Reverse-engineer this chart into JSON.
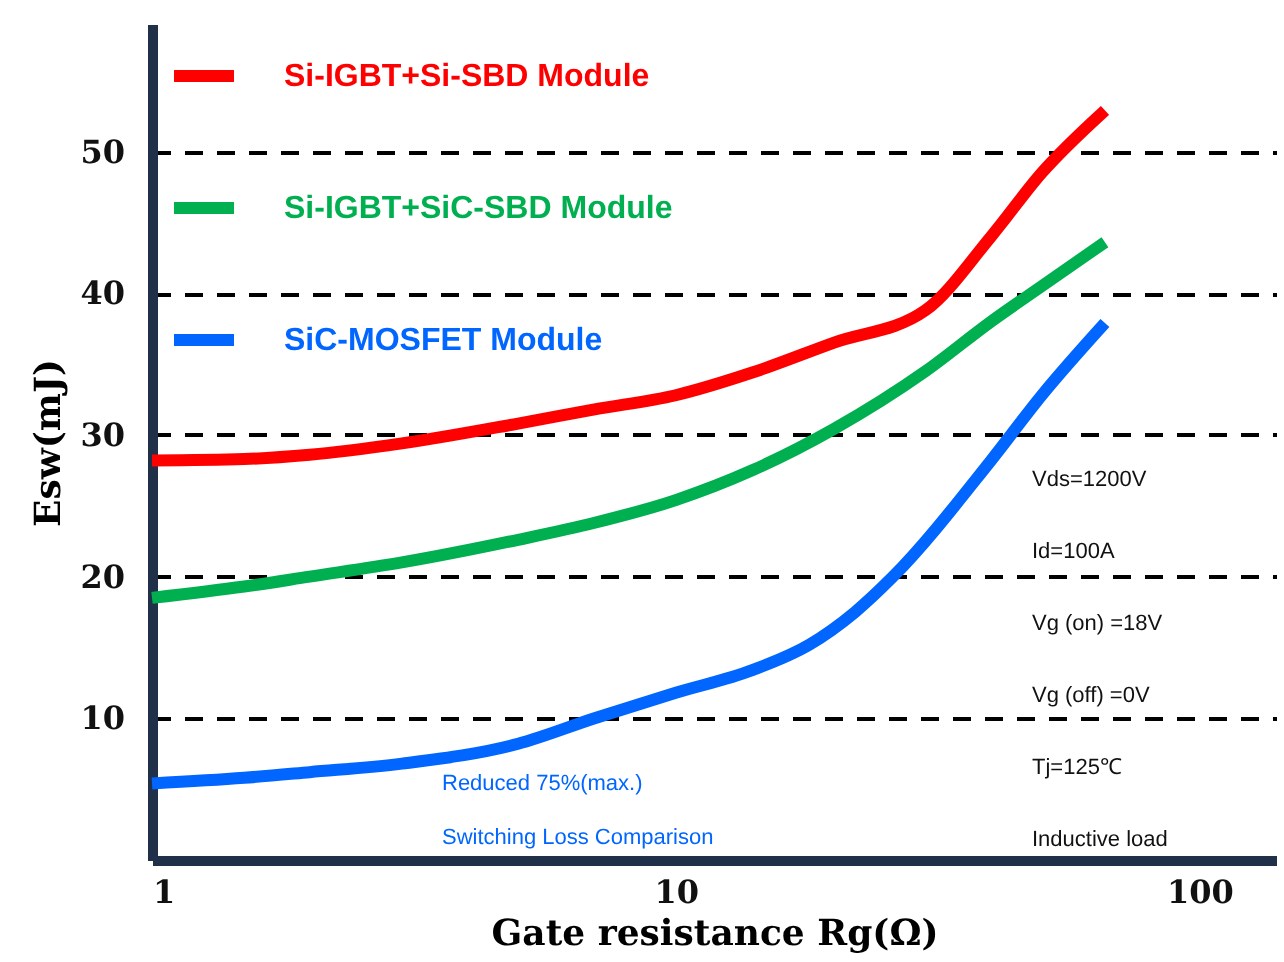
{
  "chart_data": {
    "type": "line",
    "xlabel": "Gate resistance Rg(Ω)",
    "ylabel": "Esw(mJ)",
    "log": "x",
    "xlim": [
      1,
      140
    ],
    "xticks": [
      1,
      10,
      100
    ],
    "ylim": [
      0,
      59
    ],
    "yticks": [
      10,
      20,
      30,
      40,
      50
    ],
    "grid": "y",
    "legend": "top left",
    "line_style": "solid",
    "marker": "none",
    "series": [
      {
        "name": "Si-IGBT+Si-SBD Module",
        "color": "#ff0000",
        "x": [
          1,
          1.5,
          2,
          3,
          5,
          7,
          10,
          14,
          20,
          30,
          40,
          50,
          66
        ],
        "values": [
          28.2,
          28.3,
          28.6,
          29.4,
          30.8,
          31.8,
          32.8,
          34.4,
          36.5,
          38.8,
          44,
          48.5,
          52.9
        ]
      },
      {
        "name": "Si-IGBT+SiC-SBD Module",
        "color": "#00b050",
        "x": [
          1,
          1.5,
          2,
          3,
          5,
          7,
          10,
          14,
          20,
          30,
          40,
          50,
          66
        ],
        "values": [
          18.5,
          19.3,
          20,
          21,
          22.6,
          23.8,
          25.4,
          27.5,
          30.4,
          34.5,
          38,
          40.5,
          43.6
        ]
      },
      {
        "name": "SiC-MOSFET Module",
        "color": "#0066ff",
        "x": [
          1,
          1.5,
          2,
          3,
          5,
          7,
          10,
          14,
          18,
          22,
          26,
          40,
          50,
          66
        ],
        "values": [
          5.4,
          5.8,
          6.2,
          6.8,
          8.2,
          10,
          11.8,
          13.4,
          15.2,
          17.5,
          20,
          28.2,
          32.8,
          37.9
        ]
      }
    ],
    "annotations": [
      "Vds=1200V",
      "Id=100A",
      "Vg (on) =18V",
      "Vg (off) =0V",
      "Tj=125℃",
      "Inductive load",
      "Reduced 75%(max.)",
      "Switching  Loss  Comparison"
    ]
  }
}
